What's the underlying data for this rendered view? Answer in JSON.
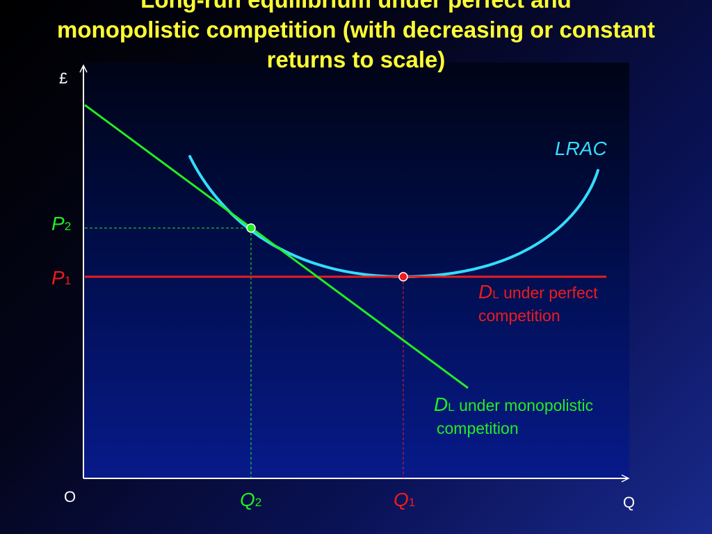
{
  "title": {
    "line1": "Long-run equilibrium under perfect and",
    "line2": "monopolistic competition (with decreasing or constant",
    "line3": "returns to scale)"
  },
  "axes": {
    "y_label": "£",
    "x_label": "Q",
    "origin_label": "O"
  },
  "curves": {
    "lrac": {
      "label": "LRAC",
      "color": "#33ddff"
    },
    "demand_perfect": {
      "symbol": "D",
      "subscript": "L",
      "text_line1": "under perfect",
      "text_line2": "competition",
      "color": "#ee1c1c"
    },
    "demand_monopolistic": {
      "symbol": "D",
      "subscript": "L",
      "text_line1": "under monopolistic",
      "text_line2": "competition",
      "color": "#22ee22"
    }
  },
  "levels": {
    "p1": {
      "symbol": "P",
      "subscript": "1",
      "color": "#ee1c1c"
    },
    "p2": {
      "symbol": "P",
      "subscript": "2",
      "color": "#22ee22"
    },
    "q1": {
      "symbol": "Q",
      "subscript": "1",
      "color": "#ee1c1c"
    },
    "q2": {
      "symbol": "Q",
      "subscript": "2",
      "color": "#22ee22"
    }
  },
  "colors": {
    "title": "#ffff33",
    "axes": "#ffffff"
  }
}
